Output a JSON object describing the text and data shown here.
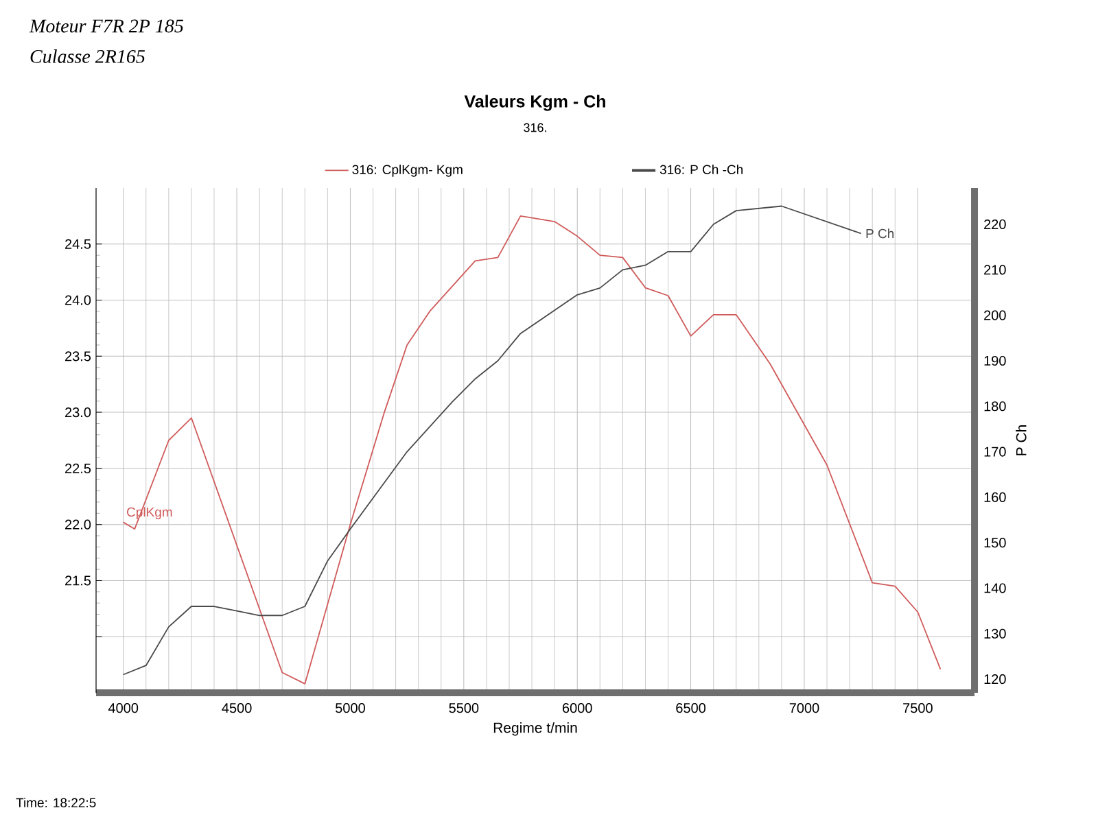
{
  "chart_data": {
    "type": "line",
    "title": "Valeurs Kgm - Ch",
    "subtitle": "316.",
    "xlabel": "Regime t/min",
    "y2label": "P Ch",
    "xlim": [
      3880,
      7750
    ],
    "xticks": [
      4000,
      4500,
      5000,
      5500,
      6000,
      6500,
      7000,
      7500
    ],
    "ylim": [
      20.5,
      25.0
    ],
    "yticks": [
      {
        "value": 21,
        "label": null
      },
      21.5,
      {
        "value": 22,
        "label": "22.0"
      },
      22.5,
      {
        "value": 23,
        "label": "23.0"
      },
      23.5,
      {
        "value": 24,
        "label": "24.0"
      },
      24.5
    ],
    "y2lim": [
      117,
      228
    ],
    "y2ticks": [
      120,
      130,
      140,
      150,
      160,
      170,
      180,
      190,
      200,
      210,
      220
    ],
    "grid": true,
    "legend": "top",
    "series": [
      {
        "name": "316: CplKgm- Kgm",
        "color": "#d05a5a",
        "x": [
          4000,
          4050,
          4200,
          4300,
          4700,
          4800,
          5000,
          5150,
          5250,
          5350,
          5550,
          5650,
          5750,
          5900,
          6000,
          6100,
          6200,
          6300,
          6400,
          6500,
          6600,
          6700,
          6850,
          7100,
          7300,
          7400,
          7500,
          7600
        ],
        "values": [
          22.02,
          21.96,
          22.75,
          22.95,
          20.68,
          20.58,
          22.0,
          23.0,
          23.6,
          23.9,
          24.35,
          24.38,
          24.75,
          24.7,
          24.57,
          24.4,
          24.38,
          24.11,
          24.04,
          23.68,
          23.87,
          23.87,
          23.43,
          22.53,
          21.48,
          21.45,
          21.22,
          20.71
        ]
      },
      {
        "name": "316: P Ch -Ch",
        "color": "#4a4a4a",
        "axis": "y2",
        "x": [
          4000,
          4100,
          4200,
          4300,
          4400,
          4500,
          4600,
          4700,
          4800,
          4900,
          5000,
          5250,
          5450,
          5550,
          5650,
          5750,
          6000,
          6100,
          6200,
          6300,
          6400,
          6500,
          6600,
          6700,
          6900,
          7250
        ],
        "values": [
          121,
          123,
          131.5,
          136,
          136,
          135,
          134,
          134,
          136,
          146,
          153,
          170,
          181,
          186,
          190,
          196,
          204.5,
          206,
          210,
          211,
          214,
          214,
          220,
          223,
          224,
          218
        ]
      }
    ],
    "annotations": [
      "Moteur F7R 2P 185",
      "Culasse 2R165",
      "Time: 18:22:5",
      "P Ch",
      {
        "text": "CplKgm",
        "x": 4000,
        "y": 22.02
      }
    ]
  }
}
